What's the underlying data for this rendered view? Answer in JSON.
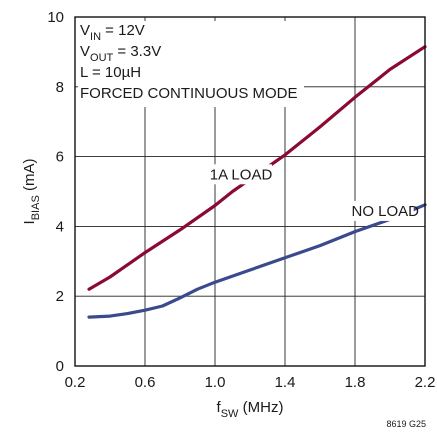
{
  "chart_data": {
    "type": "line",
    "title": "",
    "xlabel": {
      "base": "f",
      "sub": "SW",
      "rest": " (MHz)"
    },
    "ylabel": {
      "base": "I",
      "sub": "BIAS",
      "rest": " (mA)"
    },
    "xlim": [
      0.2,
      2.2
    ],
    "ylim": [
      0,
      10
    ],
    "x_ticks": [
      "0.2",
      "0.6",
      "1.0",
      "1.4",
      "1.8",
      "2.2"
    ],
    "y_ticks": [
      "0",
      "2",
      "4",
      "6",
      "8",
      "10"
    ],
    "grid": true,
    "conditions": [
      {
        "base": "V",
        "sub": "IN",
        "rest": " = 12V"
      },
      {
        "base": "V",
        "sub": "OUT",
        "rest": " = 3.3V"
      },
      {
        "base": "L = 10µH",
        "sub": "",
        "rest": ""
      },
      {
        "base": "FORCED CONTINUOUS MODE",
        "sub": "",
        "rest": ""
      }
    ],
    "series": [
      {
        "name": "1A LOAD",
        "color": "#8b0a32",
        "points": [
          [
            0.28,
            2.2
          ],
          [
            0.4,
            2.55
          ],
          [
            0.6,
            3.25
          ],
          [
            0.8,
            3.9
          ],
          [
            1.0,
            4.6
          ],
          [
            1.1,
            5.0
          ],
          [
            1.2,
            5.35
          ],
          [
            1.4,
            6.05
          ],
          [
            1.6,
            6.85
          ],
          [
            1.8,
            7.7
          ],
          [
            2.0,
            8.5
          ],
          [
            2.2,
            9.15
          ]
        ]
      },
      {
        "name": "NO LOAD",
        "color": "#3a4a8c",
        "points": [
          [
            0.28,
            1.4
          ],
          [
            0.4,
            1.43
          ],
          [
            0.5,
            1.5
          ],
          [
            0.6,
            1.6
          ],
          [
            0.7,
            1.72
          ],
          [
            0.8,
            1.95
          ],
          [
            0.9,
            2.2
          ],
          [
            1.0,
            2.4
          ],
          [
            1.2,
            2.75
          ],
          [
            1.4,
            3.1
          ],
          [
            1.6,
            3.45
          ],
          [
            1.8,
            3.85
          ],
          [
            2.0,
            4.2
          ],
          [
            2.2,
            4.62
          ]
        ]
      }
    ],
    "series_labels": [
      {
        "text": "1A LOAD",
        "x": 0.97,
        "y": 5.35
      },
      {
        "text": "NO LOAD",
        "x": 1.78,
        "y": 4.3
      }
    ],
    "footnote": "8619 G25"
  }
}
